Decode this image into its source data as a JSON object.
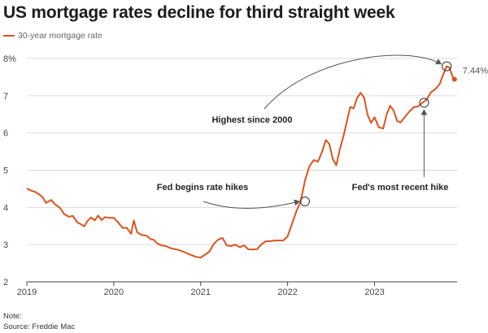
{
  "title": "US mortgage rates decline for third straight week",
  "note": "Note:",
  "source": "Source: Freddie Mac",
  "colors": {
    "series": "#d9541e",
    "grid": "#dcdcdc",
    "axis": "#444444",
    "annotation": "#555555"
  },
  "chart_data": {
    "type": "line",
    "legend_position": "top-left",
    "grid": "horizontal",
    "xlim": [
      2019.0,
      2023.95
    ],
    "ylim": [
      2,
      8
    ],
    "x_ticks": [
      {
        "value": 2019,
        "label": "2019"
      },
      {
        "value": 2020,
        "label": "2020"
      },
      {
        "value": 2021,
        "label": "2021"
      },
      {
        "value": 2022,
        "label": "2022"
      },
      {
        "value": 2023,
        "label": "2023"
      }
    ],
    "y_ticks": [
      {
        "value": 2,
        "label": "2"
      },
      {
        "value": 3,
        "label": "3"
      },
      {
        "value": 4,
        "label": "4"
      },
      {
        "value": 5,
        "label": "5"
      },
      {
        "value": 6,
        "label": "6"
      },
      {
        "value": 7,
        "label": "7"
      },
      {
        "value": 8,
        "label": "8%"
      }
    ],
    "series": [
      {
        "name": "30-year mortgage rate",
        "points": [
          [
            2019.0,
            4.51
          ],
          [
            2019.05,
            4.45
          ],
          [
            2019.1,
            4.41
          ],
          [
            2019.14,
            4.35
          ],
          [
            2019.18,
            4.28
          ],
          [
            2019.22,
            4.12
          ],
          [
            2019.28,
            4.2
          ],
          [
            2019.33,
            4.07
          ],
          [
            2019.38,
            3.99
          ],
          [
            2019.43,
            3.82
          ],
          [
            2019.48,
            3.75
          ],
          [
            2019.53,
            3.77
          ],
          [
            2019.58,
            3.6
          ],
          [
            2019.62,
            3.55
          ],
          [
            2019.66,
            3.49
          ],
          [
            2019.7,
            3.64
          ],
          [
            2019.74,
            3.73
          ],
          [
            2019.78,
            3.65
          ],
          [
            2019.82,
            3.78
          ],
          [
            2019.86,
            3.66
          ],
          [
            2019.9,
            3.74
          ],
          [
            2019.95,
            3.72
          ],
          [
            2020.0,
            3.72
          ],
          [
            2020.05,
            3.6
          ],
          [
            2020.1,
            3.45
          ],
          [
            2020.15,
            3.45
          ],
          [
            2020.2,
            3.29
          ],
          [
            2020.23,
            3.65
          ],
          [
            2020.27,
            3.33
          ],
          [
            2020.32,
            3.26
          ],
          [
            2020.38,
            3.24
          ],
          [
            2020.42,
            3.15
          ],
          [
            2020.46,
            3.13
          ],
          [
            2020.5,
            3.03
          ],
          [
            2020.55,
            2.98
          ],
          [
            2020.6,
            2.96
          ],
          [
            2020.66,
            2.9
          ],
          [
            2020.72,
            2.87
          ],
          [
            2020.78,
            2.83
          ],
          [
            2020.83,
            2.78
          ],
          [
            2020.9,
            2.71
          ],
          [
            2020.95,
            2.67
          ],
          [
            2021.0,
            2.65
          ],
          [
            2021.05,
            2.73
          ],
          [
            2021.1,
            2.81
          ],
          [
            2021.15,
            3.02
          ],
          [
            2021.2,
            3.13
          ],
          [
            2021.25,
            3.18
          ],
          [
            2021.3,
            2.98
          ],
          [
            2021.35,
            2.96
          ],
          [
            2021.4,
            3.0
          ],
          [
            2021.45,
            2.93
          ],
          [
            2021.5,
            2.98
          ],
          [
            2021.55,
            2.87
          ],
          [
            2021.6,
            2.87
          ],
          [
            2021.65,
            2.88
          ],
          [
            2021.7,
            3.01
          ],
          [
            2021.75,
            3.09
          ],
          [
            2021.8,
            3.09
          ],
          [
            2021.85,
            3.11
          ],
          [
            2021.9,
            3.11
          ],
          [
            2021.95,
            3.11
          ],
          [
            2022.0,
            3.22
          ],
          [
            2022.05,
            3.55
          ],
          [
            2022.1,
            3.89
          ],
          [
            2022.15,
            4.16
          ],
          [
            2022.2,
            4.72
          ],
          [
            2022.25,
            5.1
          ],
          [
            2022.3,
            5.27
          ],
          [
            2022.35,
            5.23
          ],
          [
            2022.4,
            5.52
          ],
          [
            2022.44,
            5.81
          ],
          [
            2022.48,
            5.7
          ],
          [
            2022.52,
            5.3
          ],
          [
            2022.56,
            5.13
          ],
          [
            2022.6,
            5.55
          ],
          [
            2022.64,
            5.89
          ],
          [
            2022.68,
            6.29
          ],
          [
            2022.72,
            6.7
          ],
          [
            2022.76,
            6.66
          ],
          [
            2022.8,
            6.94
          ],
          [
            2022.84,
            7.08
          ],
          [
            2022.88,
            6.95
          ],
          [
            2022.92,
            6.49
          ],
          [
            2022.96,
            6.27
          ],
          [
            2023.0,
            6.42
          ],
          [
            2023.05,
            6.15
          ],
          [
            2023.1,
            6.12
          ],
          [
            2023.14,
            6.5
          ],
          [
            2023.18,
            6.73
          ],
          [
            2023.22,
            6.6
          ],
          [
            2023.26,
            6.32
          ],
          [
            2023.3,
            6.28
          ],
          [
            2023.35,
            6.43
          ],
          [
            2023.4,
            6.57
          ],
          [
            2023.45,
            6.69
          ],
          [
            2023.5,
            6.71
          ],
          [
            2023.55,
            6.81
          ],
          [
            2023.6,
            6.9
          ],
          [
            2023.65,
            7.09
          ],
          [
            2023.7,
            7.18
          ],
          [
            2023.75,
            7.31
          ],
          [
            2023.79,
            7.57
          ],
          [
            2023.83,
            7.79
          ],
          [
            2023.86,
            7.76
          ],
          [
            2023.88,
            7.63
          ],
          [
            2023.9,
            7.5
          ],
          [
            2023.92,
            7.44
          ]
        ]
      }
    ],
    "last_value_label": "7.44%",
    "annotations": [
      {
        "text": "Fed begins rate hikes",
        "x": 2022.2,
        "y": 4.16
      },
      {
        "text": "Highest since 2000",
        "x": 2023.83,
        "y": 7.79
      },
      {
        "text": "Fed's most recent hike",
        "x": 2023.57,
        "y": 6.81
      }
    ]
  }
}
